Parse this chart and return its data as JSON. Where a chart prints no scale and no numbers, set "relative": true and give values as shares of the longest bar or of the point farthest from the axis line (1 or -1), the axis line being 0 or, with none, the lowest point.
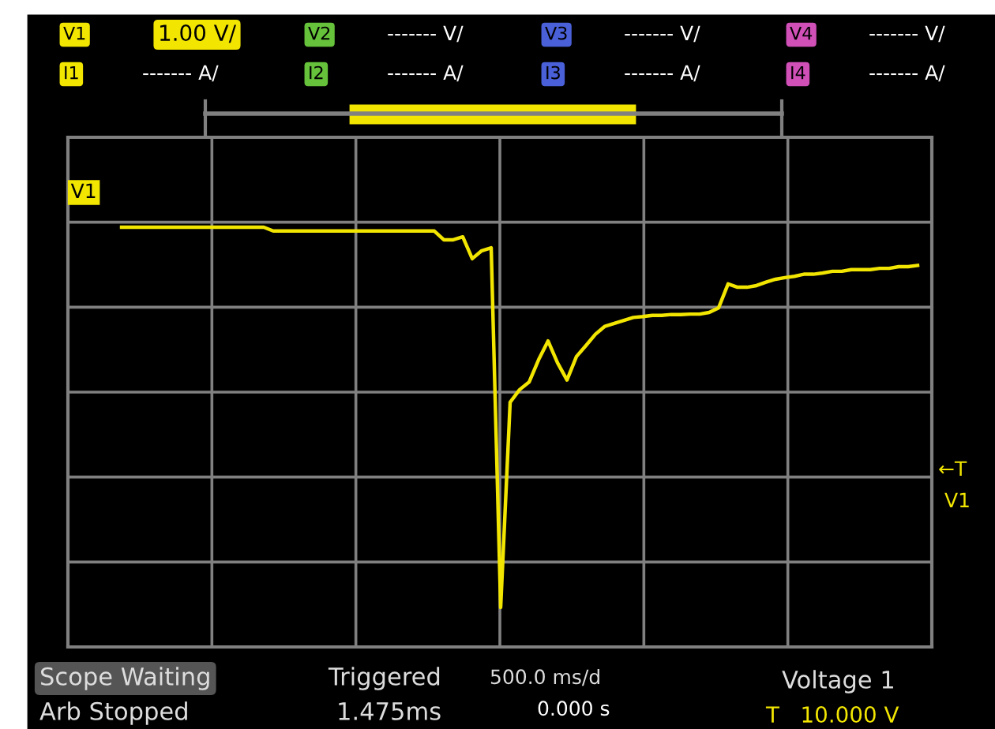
{
  "chart_data": {
    "type": "line",
    "relative": true,
    "grid": true,
    "tick_labels": false,
    "legend": false,
    "marker": "none",
    "line_style": "solid",
    "categories": [
      null,
      null,
      null,
      null,
      null,
      null,
      null,
      null,
      null,
      null,
      null,
      null,
      null,
      null,
      null,
      null,
      null,
      null,
      null,
      null,
      null,
      null,
      null,
      null,
      null,
      null,
      null,
      null,
      null,
      null,
      null,
      null,
      null,
      null,
      null,
      null,
      null,
      null,
      null,
      null,
      null,
      null,
      null,
      null,
      null,
      null,
      null,
      null,
      null,
      null,
      null,
      null,
      null,
      null,
      null,
      null,
      null,
      null,
      null,
      null,
      null,
      null,
      null,
      null,
      null,
      null,
      null,
      null,
      null,
      null,
      null,
      null,
      null,
      null,
      null,
      null,
      null,
      null,
      null,
      null,
      null,
      null,
      null,
      null,
      null
    ],
    "series": [
      {
        "name": "V1",
        "color": "#f2e600",
        "values": [
          1.0,
          1.0,
          1.0,
          1.0,
          1.0,
          1.0,
          1.0,
          1.0,
          1.0,
          1.0,
          1.0,
          1.0,
          1.0,
          1.0,
          1.0,
          1.0,
          0.991,
          0.991,
          0.991,
          0.991,
          0.991,
          0.991,
          0.991,
          0.991,
          0.991,
          0.991,
          0.991,
          0.991,
          0.991,
          0.991,
          0.991,
          0.991,
          0.991,
          0.991,
          0.97,
          0.97,
          0.977,
          0.925,
          0.944,
          0.951,
          0.094,
          0.583,
          0.613,
          0.631,
          0.684,
          0.729,
          0.677,
          0.636,
          0.692,
          0.718,
          0.745,
          0.764,
          0.771,
          0.778,
          0.785,
          0.787,
          0.79,
          0.79,
          0.792,
          0.792,
          0.793,
          0.793,
          0.797,
          0.808,
          0.865,
          0.857,
          0.857,
          0.861,
          0.869,
          0.876,
          0.88,
          0.883,
          0.888,
          0.888,
          0.891,
          0.895,
          0.895,
          0.899,
          0.899,
          0.899,
          0.902,
          0.902,
          0.906,
          0.906,
          0.909
        ]
      }
    ],
    "annotations": [
      "V1",
      "1.00 V/",
      "V2",
      "------- V/",
      "V3",
      "------- V/",
      "V4",
      "------- V/",
      "I1",
      "------- A/",
      "I2",
      "------- A/",
      "I3",
      "------- A/",
      "I4",
      "------- A/",
      "Scope Waiting",
      "Arb Stopped",
      "Triggered",
      "1.475ms",
      "500.0 ms/d",
      "0.000 s",
      "Voltage 1",
      "T   10.000 V",
      "←T",
      "V1"
    ]
  }
}
